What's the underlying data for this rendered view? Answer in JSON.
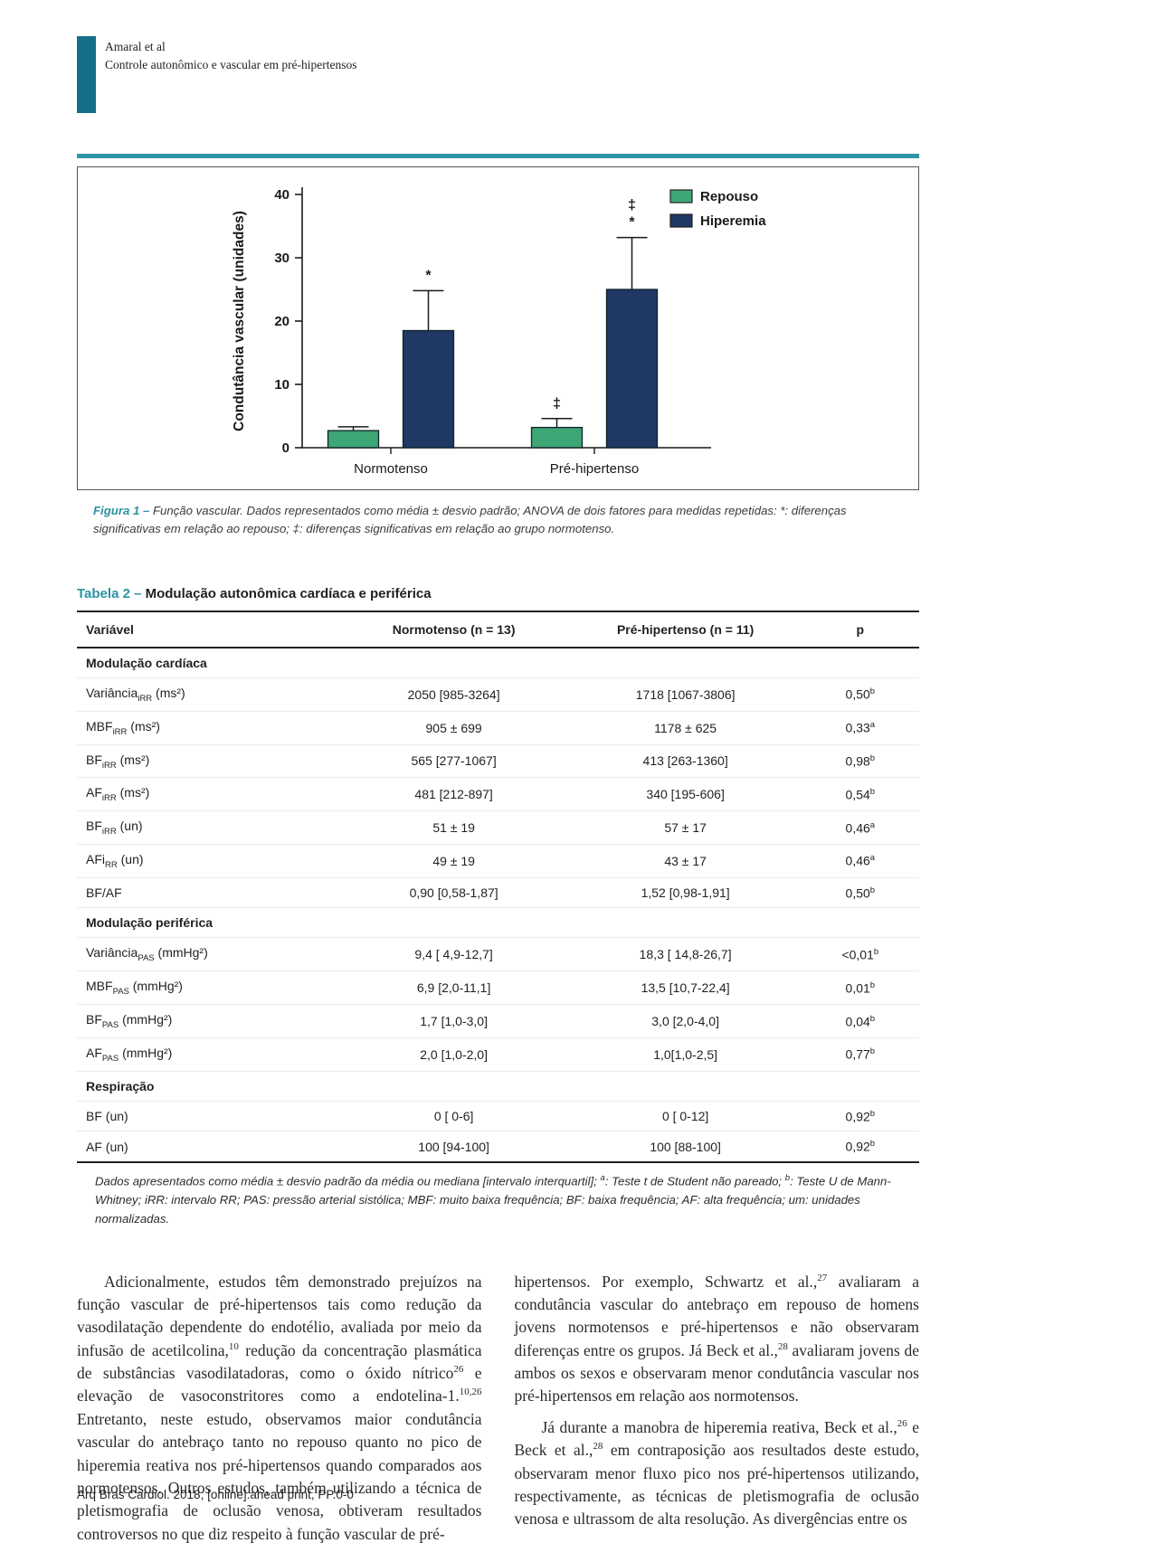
{
  "header": {
    "authors": "Amaral et al",
    "title": "Controle autonômico e vascular em pré-hipertensos"
  },
  "footer": "Arq Bras Cardiol. 2018; [online].ahead print, PP.0-0",
  "colors": {
    "accent_teal_dark": "#156f88",
    "accent_teal": "#2e96a6",
    "label_teal": "#2b93a3",
    "bar_green": "#3ea675",
    "bar_navy": "#1f3864",
    "text_dark": "#231f20"
  },
  "chart_data": {
    "type": "bar",
    "title": "",
    "ylabel": "Condutância vascular (unidades)",
    "xlabel": "",
    "ylim": [
      0,
      40
    ],
    "yticks": [
      0,
      10,
      20,
      30,
      40
    ],
    "grid": false,
    "legend_position": "top-right",
    "categories": [
      "Normotenso",
      "Pré-hipertenso"
    ],
    "series": [
      {
        "name": "Repouso",
        "color": "#3ea675",
        "values": [
          2.7,
          3.2
        ],
        "error_up": [
          0.6,
          1.4
        ],
        "annotations": [
          [],
          [
            "‡"
          ]
        ]
      },
      {
        "name": "Hiperemia",
        "color": "#1f3864",
        "values": [
          18.5,
          25.0
        ],
        "error_up": [
          6.3,
          8.2
        ],
        "annotations": [
          [
            "*"
          ],
          [
            "*",
            "‡"
          ]
        ]
      }
    ]
  },
  "figure_caption": {
    "label": "Figura 1 –",
    "text": " Função vascular. Dados representados como média ± desvio padrão; ANOVA de dois fatores para medidas repetidas: *: diferenças significativas em relação ao repouso; ‡: diferenças significativas em relação ao grupo normotenso."
  },
  "table": {
    "title_label": "Tabela 2 –",
    "title_text": " Modulação autonômica cardíaca e periférica",
    "columns": [
      "Variável",
      "Normotenso (n = 13)",
      "Pré-hipertenso (n = 11)",
      "p"
    ],
    "sections": [
      {
        "label": "Modulação cardíaca",
        "rows": [
          {
            "name": "Variância",
            "sub": "iRR",
            "unit": " (ms²)",
            "normotenso": "2050 [985-3264]",
            "prehipertenso": "1718 [1067-3806]",
            "p": "0,50",
            "p_sup": "b"
          },
          {
            "name": "MBF",
            "sub": "iRR",
            "unit": " (ms²)",
            "normotenso": "905 ± 699",
            "prehipertenso": "1178 ± 625",
            "p": "0,33",
            "p_sup": "a"
          },
          {
            "name": "BF",
            "sub": "iRR",
            "unit": " (ms²)",
            "normotenso": "565 [277-1067]",
            "prehipertenso": "413 [263-1360]",
            "p": "0,98",
            "p_sup": "b"
          },
          {
            "name": "AF",
            "sub": "iRR",
            "unit": " (ms²)",
            "normotenso": "481 [212-897]",
            "prehipertenso": "340 [195-606]",
            "p": "0,54",
            "p_sup": "b"
          },
          {
            "name": "BF",
            "sub": "iRR",
            "unit": " (un)",
            "normotenso": "51 ± 19",
            "prehipertenso": "57 ± 17",
            "p": "0,46",
            "p_sup": "a"
          },
          {
            "name": "AFi",
            "sub": "RR",
            "unit": " (un)",
            "normotenso": "49 ± 19",
            "prehipertenso": "43 ± 17",
            "p": "0,46",
            "p_sup": "a"
          },
          {
            "name": "BF/AF",
            "sub": "",
            "unit": "",
            "normotenso": "0,90 [0,58-1,87]",
            "prehipertenso": "1,52 [0,98-1,91]",
            "p": "0,50",
            "p_sup": "b"
          }
        ]
      },
      {
        "label": "Modulação periférica",
        "rows": [
          {
            "name": "Variância",
            "sub": "PAS",
            "unit": " (mmHg²)",
            "normotenso": "9,4 [ 4,9-12,7]",
            "prehipertenso": "18,3 [ 14,8-26,7]",
            "p": "<0,01",
            "p_sup": "b"
          },
          {
            "name": "MBF",
            "sub": "PAS",
            "unit": " (mmHg²)",
            "normotenso": "6,9 [2,0-11,1]",
            "prehipertenso": "13,5 [10,7-22,4]",
            "p": "0,01",
            "p_sup": "b"
          },
          {
            "name": "BF",
            "sub": "PAS",
            "unit": " (mmHg²)",
            "normotenso": "1,7 [1,0-3,0]",
            "prehipertenso": "3,0 [2,0-4,0]",
            "p": "0,04",
            "p_sup": "b"
          },
          {
            "name": "AF",
            "sub": "PAS",
            "unit": " (mmHg²)",
            "normotenso": "2,0 [1,0-2,0]",
            "prehipertenso": "1,0[1,0-2,5]",
            "p": "0,77",
            "p_sup": "b"
          }
        ]
      },
      {
        "label": "Respiração",
        "rows": [
          {
            "name": "BF",
            "sub": "",
            "unit": " (un)",
            "normotenso": "0 [ 0-6]",
            "prehipertenso": "0 [ 0-12]",
            "p": "0,92",
            "p_sup": "b"
          },
          {
            "name": "AF",
            "sub": "",
            "unit": " (un)",
            "normotenso": "100 [94-100]",
            "prehipertenso": "100 [88-100]",
            "p": "0,92",
            "p_sup": "b"
          }
        ]
      }
    ],
    "footnote": [
      {
        "t": "Dados apresentados como média ± desvio padrão da média ou mediana [intervalo interquartil]; "
      },
      {
        "sup": "a"
      },
      {
        "t": ": Teste t de Student não pareado; "
      },
      {
        "sup": "b"
      },
      {
        "t": ": Teste U de Mann-Whitney; iRR: intervalo RR; PAS: pressão arterial sistólica; MBF: muito baixa frequência; BF: baixa frequência; AF: alta frequência; um: unidades normalizadas."
      }
    ]
  },
  "body": {
    "left_column": [
      {
        "indent": true,
        "segments": [
          {
            "t": "Adicionalmente, estudos têm demonstrado prejuízos na função vascular de pré-hipertensos tais como redução da vasodilatação dependente do endotélio, avaliada por meio da infusão de acetilcolina,"
          },
          {
            "sup": "10"
          },
          {
            "t": " redução da concentração plasmática de substâncias vasodilatadoras, como o óxido nítrico"
          },
          {
            "sup": "26"
          },
          {
            "t": " e elevação de vasoconstritores como a endotelina-1."
          },
          {
            "sup": "10,26"
          },
          {
            "t": " Entretanto, neste estudo, observamos maior condutância vascular do antebraço tanto no repouso quanto no pico de hiperemia reativa nos pré-hipertensos quando comparados aos normotensos. Outros estudos, também utilizando a técnica de pletismografia de oclusão venosa, obtiveram resultados controversos no que diz respeito à função vascular de pré-"
          }
        ]
      }
    ],
    "right_column": [
      {
        "indent": false,
        "segments": [
          {
            "t": "hipertensos. Por exemplo, Schwartz et al.,"
          },
          {
            "sup": "27"
          },
          {
            "t": " avaliaram a condutância vascular do antebraço em repouso de homens jovens normotensos e pré-hipertensos e não observaram diferenças entre os grupos. Já Beck et al.,"
          },
          {
            "sup": "28"
          },
          {
            "t": " avaliaram jovens de ambos os sexos e observaram menor condutância vascular nos pré-hipertensos em relação aos normotensos."
          }
        ]
      },
      {
        "indent": true,
        "segments": [
          {
            "t": "Já durante a manobra de hiperemia reativa, Beck et al.,"
          },
          {
            "sup": "26"
          },
          {
            "t": " e Beck et al.,"
          },
          {
            "sup": "28"
          },
          {
            "t": " em contraposição aos resultados deste estudo, observaram menor fluxo pico nos pré-hipertensos utilizando, respectivamente, as técnicas de pletismografia de oclusão venosa e ultrassom de alta resolução. As divergências entre os"
          }
        ]
      }
    ]
  }
}
